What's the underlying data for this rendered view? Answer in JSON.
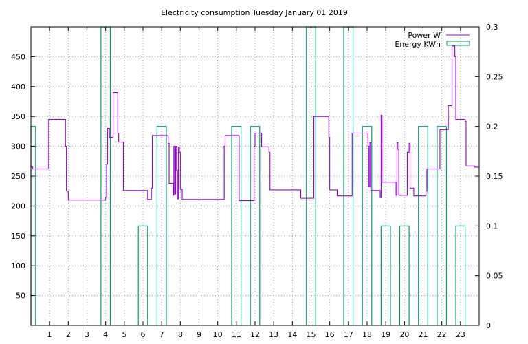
{
  "chart_data": {
    "type": "line",
    "title": "Electricity consumption Tuesday January 01 2019",
    "xlabel": "",
    "ylabel": "",
    "y2label": "",
    "xlim": [
      0,
      24
    ],
    "ylim": [
      0,
      500
    ],
    "y2lim": [
      0,
      0.3
    ],
    "grid": true,
    "legend_position": "top-right",
    "x_ticks": [
      1,
      2,
      3,
      4,
      5,
      6,
      7,
      8,
      9,
      10,
      11,
      12,
      13,
      14,
      15,
      16,
      17,
      18,
      19,
      20,
      21,
      22,
      23
    ],
    "y_ticks": [
      50,
      100,
      150,
      200,
      250,
      300,
      350,
      400,
      450
    ],
    "y2_ticks": [
      0,
      0.05,
      0.1,
      0.15,
      0.2,
      0.25,
      0.3
    ],
    "y2_tick_labels": [
      "0",
      "0.05",
      "0.1",
      "0.15",
      "0.2",
      "0.25",
      "0.3"
    ],
    "series": [
      {
        "name": "Power W",
        "axis": "left",
        "style": "step",
        "color": "#9400d3",
        "points": [
          [
            0.0,
            265
          ],
          [
            0.1,
            262
          ],
          [
            0.95,
            262
          ],
          [
            0.95,
            345
          ],
          [
            1.8,
            345
          ],
          [
            1.85,
            300
          ],
          [
            1.9,
            225
          ],
          [
            2.0,
            210
          ],
          [
            3.9,
            210
          ],
          [
            4.0,
            215
          ],
          [
            4.05,
            270
          ],
          [
            4.1,
            330
          ],
          [
            4.2,
            315
          ],
          [
            4.4,
            390
          ],
          [
            4.6,
            390
          ],
          [
            4.65,
            322
          ],
          [
            4.7,
            307
          ],
          [
            4.9,
            307
          ],
          [
            4.95,
            226
          ],
          [
            6.2,
            226
          ],
          [
            6.25,
            211
          ],
          [
            6.4,
            211
          ],
          [
            6.45,
            230
          ],
          [
            6.5,
            318
          ],
          [
            7.3,
            318
          ],
          [
            7.35,
            305
          ],
          [
            7.4,
            238
          ],
          [
            7.6,
            238
          ],
          [
            7.62,
            218
          ],
          [
            7.65,
            300
          ],
          [
            7.7,
            220
          ],
          [
            7.75,
            300
          ],
          [
            7.8,
            260
          ],
          [
            7.85,
            212
          ],
          [
            7.9,
            298
          ],
          [
            7.95,
            290
          ],
          [
            8.0,
            228
          ],
          [
            8.1,
            211
          ],
          [
            10.3,
            211
          ],
          [
            10.35,
            300
          ],
          [
            10.4,
            318
          ],
          [
            11.1,
            318
          ],
          [
            11.15,
            209
          ],
          [
            11.9,
            209
          ],
          [
            11.95,
            300
          ],
          [
            12.0,
            322
          ],
          [
            12.3,
            322
          ],
          [
            12.35,
            299
          ],
          [
            12.7,
            299
          ],
          [
            12.75,
            290
          ],
          [
            12.8,
            227
          ],
          [
            14.4,
            227
          ],
          [
            14.45,
            213
          ],
          [
            15.1,
            213
          ],
          [
            15.15,
            350
          ],
          [
            15.9,
            350
          ],
          [
            15.95,
            315
          ],
          [
            16.0,
            227
          ],
          [
            16.35,
            227
          ],
          [
            16.4,
            217
          ],
          [
            17.15,
            217
          ],
          [
            17.2,
            322
          ],
          [
            18.0,
            322
          ],
          [
            18.05,
            300
          ],
          [
            18.1,
            232
          ],
          [
            18.15,
            306
          ],
          [
            18.2,
            226
          ],
          [
            18.65,
            226
          ],
          [
            18.7,
            214
          ],
          [
            18.75,
            352
          ],
          [
            18.8,
            240
          ],
          [
            19.5,
            240
          ],
          [
            19.55,
            218
          ],
          [
            19.6,
            306
          ],
          [
            19.65,
            295
          ],
          [
            19.7,
            218
          ],
          [
            20.1,
            218
          ],
          [
            20.15,
            290
          ],
          [
            20.25,
            305
          ],
          [
            20.3,
            230
          ],
          [
            20.45,
            230
          ],
          [
            20.5,
            217
          ],
          [
            21.1,
            217
          ],
          [
            21.15,
            225
          ],
          [
            21.2,
            262
          ],
          [
            21.85,
            262
          ],
          [
            21.9,
            328
          ],
          [
            22.3,
            328
          ],
          [
            22.35,
            368
          ],
          [
            22.5,
            368
          ],
          [
            22.55,
            468
          ],
          [
            22.65,
            468
          ],
          [
            22.7,
            450
          ],
          [
            22.75,
            345
          ],
          [
            23.2,
            345
          ],
          [
            23.25,
            342
          ],
          [
            23.3,
            267
          ],
          [
            23.7,
            267
          ],
          [
            23.75,
            265
          ],
          [
            24.0,
            265
          ]
        ]
      },
      {
        "name": "Energy KWh",
        "axis": "right",
        "style": "impulse-bars",
        "color": "#009e73",
        "bars": [
          [
            0.0,
            0.25,
            0.2
          ],
          [
            3.75,
            4.25,
            0.3
          ],
          [
            5.75,
            6.25,
            0.1
          ],
          [
            6.75,
            7.25,
            0.2
          ],
          [
            10.75,
            11.25,
            0.2
          ],
          [
            11.75,
            12.25,
            0.2
          ],
          [
            14.75,
            15.25,
            0.3
          ],
          [
            16.75,
            17.25,
            0.3
          ],
          [
            17.75,
            18.25,
            0.2
          ],
          [
            18.75,
            19.25,
            0.1
          ],
          [
            19.75,
            20.25,
            0.1
          ],
          [
            20.75,
            21.25,
            0.2
          ],
          [
            21.75,
            22.25,
            0.2
          ],
          [
            22.75,
            23.25,
            0.1
          ]
        ]
      }
    ]
  }
}
